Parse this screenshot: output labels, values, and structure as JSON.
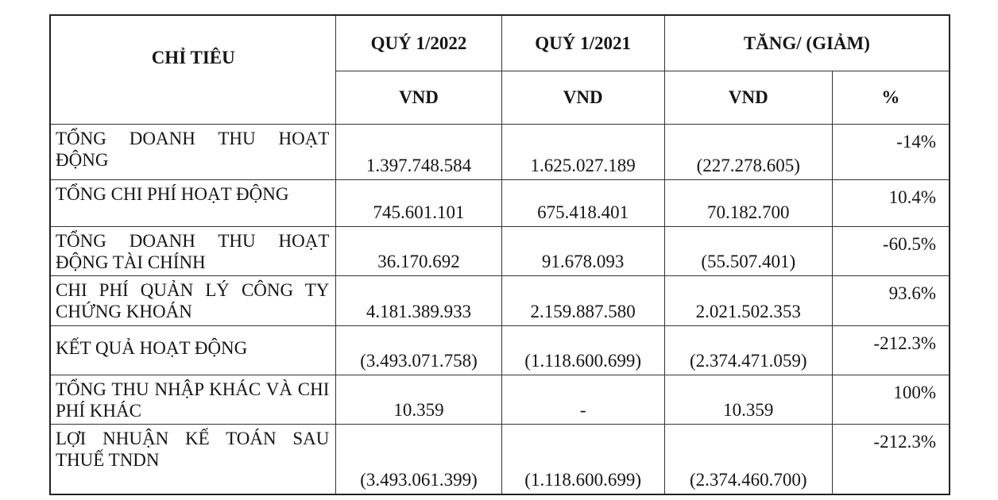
{
  "header": {
    "indicator": "CHỈ TIÊU",
    "q1_2022": "QUÝ 1/2022",
    "q1_2021": "QUÝ 1/2021",
    "change": "TĂNG/ (GIẢM)",
    "unit_2022": "VND",
    "unit_2021": "VND",
    "unit_change": "VND",
    "unit_pct": "%"
  },
  "rows": [
    {
      "label": "TỔNG DOANH THU HOẠT ĐỘNG",
      "q2022": "1.397.748.584",
      "q2021": "1.625.027.189",
      "change": "(227.278.605)",
      "pct": "-14%"
    },
    {
      "label": "TỔNG CHI PHÍ HOẠT ĐỘNG",
      "q2022": "745.601.101",
      "q2021": "675.418.401",
      "change": "70.182.700",
      "pct": "10.4%"
    },
    {
      "label": "TỔNG DOANH THU HOẠT ĐỘNG TÀI CHÍNH",
      "q2022": "36.170.692",
      "q2021": "91.678.093",
      "change": "(55.507.401)",
      "pct": "-60.5%"
    },
    {
      "label": "CHI PHÍ QUẢN LÝ CÔNG TY CHỨNG KHOÁN",
      "q2022": "4.181.389.933",
      "q2021": "2.159.887.580",
      "change": "2.021.502.353",
      "pct": "93.6%"
    },
    {
      "label": "KẾT QUẢ HOẠT ĐỘNG",
      "q2022": "(3.493.071.758)",
      "q2021": "(1.118.600.699)",
      "change": "(2.374.471.059)",
      "pct": "-212.3%"
    },
    {
      "label": "TỔNG THU NHẬP KHÁC VÀ CHI PHÍ KHÁC",
      "q2022": "10.359",
      "q2021": "-",
      "change": "10.359",
      "pct": "100%"
    },
    {
      "label": "LỢI NHUẬN KẾ TOÁN SAU THUẾ TNDN",
      "q2022": "(3.493.061.399)",
      "q2021": "(1.118.600.699)",
      "change": "(2.374.460.700)",
      "pct": "-212.3%"
    }
  ]
}
